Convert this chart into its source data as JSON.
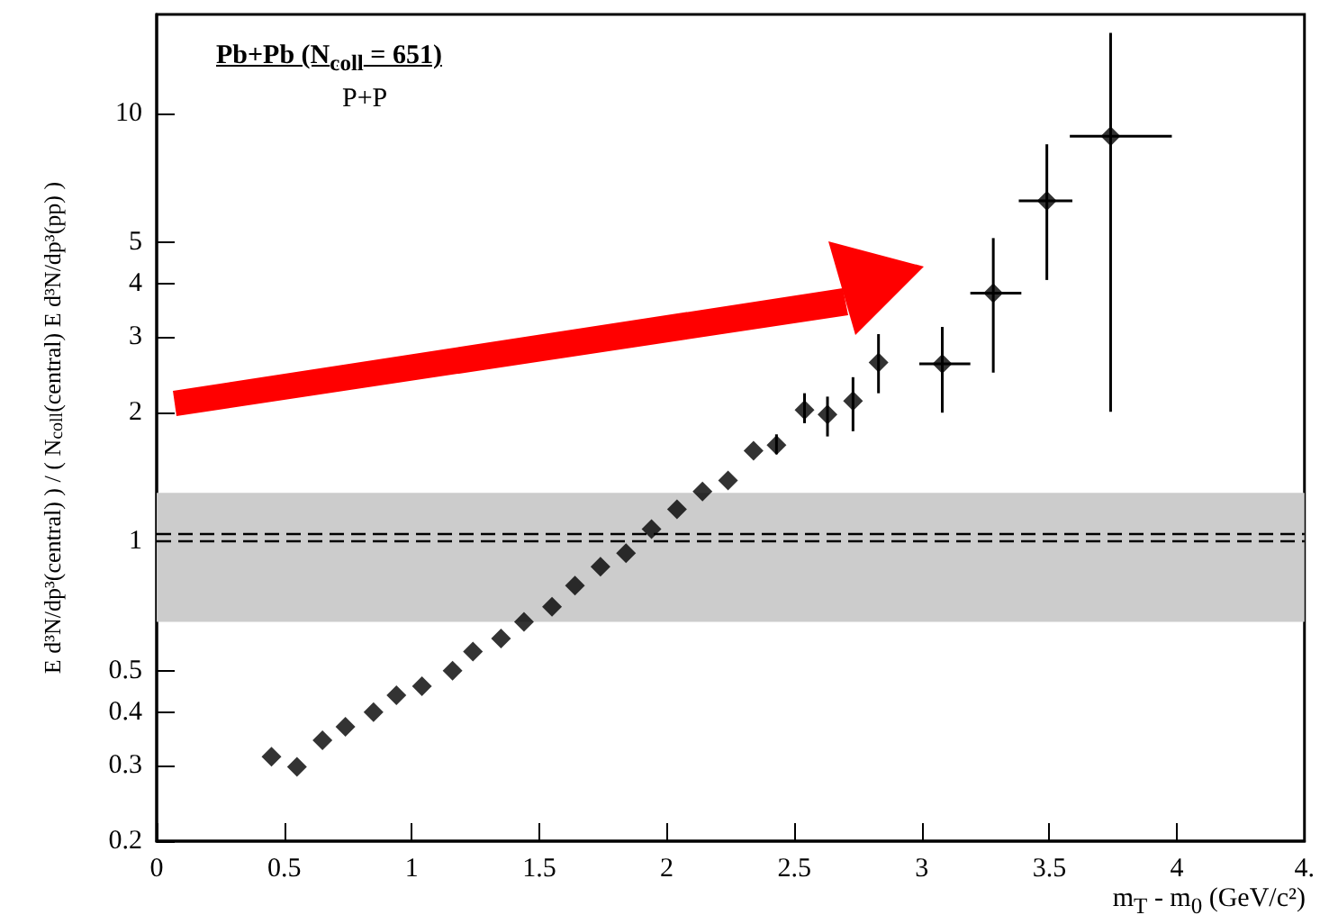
{
  "chart_data": {
    "type": "scatter",
    "xlabel": "m$_{T}$ - m$_{0}$ (GeV/c²)",
    "ylabel": "E d³N/dp³(central) ) / ( N$_{coll}$(central) E d³N/dp³(pp) )",
    "annotations": [
      "Pb+Pb (N$_{coll}$ = 651)",
      "P+P"
    ],
    "x": [
      0.45,
      0.55,
      0.65,
      0.74,
      0.85,
      0.94,
      1.04,
      1.16,
      1.24,
      1.35,
      1.44,
      1.55,
      1.64,
      1.74,
      1.84,
      1.94,
      2.04,
      2.14,
      2.24,
      2.34,
      2.43,
      2.54,
      2.63,
      2.73,
      2.83,
      3.08,
      3.28,
      3.49,
      3.74
    ],
    "series": [
      {
        "color": "#000000",
        "values": [
          0.315,
          0.298,
          0.344,
          0.37,
          0.4,
          0.438,
          0.46,
          0.5,
          0.554,
          0.594,
          0.65,
          0.705,
          0.79,
          0.874,
          0.94,
          1.07,
          1.19,
          1.31,
          1.39,
          1.63,
          1.68,
          2.03,
          1.98,
          2.13,
          2.62,
          2.6,
          3.8,
          6.24,
          8.83
        ],
        "errors": [
          null,
          null,
          null,
          null,
          null,
          null,
          null,
          null,
          null,
          null,
          null,
          null,
          null,
          null,
          null,
          null,
          null,
          null,
          null,
          null,
          [
            1.6,
            1.78
          ],
          [
            1.89,
            2.22
          ],
          [
            1.76,
            2.18
          ],
          [
            1.81,
            2.42
          ],
          [
            2.22,
            3.05
          ],
          [
            2.0,
            3.17
          ],
          [
            2.48,
            5.11
          ],
          [
            4.08,
            8.46
          ],
          [
            2.01,
            15.4
          ]
        ],
        "xerrors": [
          null,
          null,
          null,
          null,
          null,
          null,
          null,
          null,
          null,
          null,
          null,
          null,
          null,
          null,
          null,
          null,
          null,
          null,
          null,
          null,
          null,
          null,
          null,
          null,
          null,
          [
            2.99,
            3.19
          ],
          [
            3.19,
            3.39
          ],
          [
            3.38,
            3.59
          ],
          [
            3.58,
            3.98
          ]
        ]
      }
    ],
    "marker": "diamond",
    "log": "y",
    "xlim": [
      0,
      4.5
    ],
    "xticks": [
      0,
      0.5,
      1,
      1.5,
      2,
      2.5,
      3,
      3.5,
      4,
      {
        "value": 4.5,
        "label": "4."
      }
    ],
    "ylim": [
      0.2,
      17
    ],
    "yticks": [
      0.2,
      0.3,
      0.4,
      0.5,
      1,
      2,
      3,
      4,
      5,
      10
    ],
    "bands": [
      {
        "axis": "y",
        "from": 0.65,
        "to": 1.3,
        "color": "#cccccc"
      }
    ],
    "ref_lines": [
      {
        "axis": "y",
        "value": 1,
        "line_style": "dashed",
        "color": "#000000"
      },
      {
        "axis": "y",
        "value": 1.04,
        "line_style": "dashed",
        "color": "#000000"
      }
    ],
    "grid": false
  }
}
